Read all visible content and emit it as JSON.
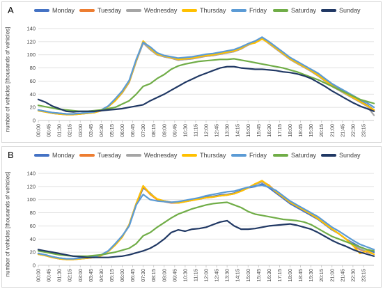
{
  "colors": {
    "Monday": "#4472c4",
    "Tuesday": "#ed7d31",
    "Wednesday": "#a5a5a5",
    "Thursday": "#ffc000",
    "Friday": "#5b9bd5",
    "Saturday": "#70ad47",
    "Sunday": "#203864"
  },
  "chart_data": [
    {
      "type": "line",
      "panel": "A",
      "ylabel": "number of vehicles [thousands of vehicles]",
      "ylim": [
        0,
        140
      ],
      "yticks": [
        "0",
        "20",
        "40",
        "60",
        "80",
        "100",
        "120",
        "140"
      ],
      "xticks": [
        "00:00",
        "00:45",
        "01:30",
        "02:15",
        "03:00",
        "03:45",
        "04:30",
        "05:15",
        "06:00",
        "06:45",
        "07:30",
        "08:15",
        "09:00",
        "09:45",
        "10:30",
        "11:15",
        "12:00",
        "12:45",
        "13:30",
        "14:15",
        "15:00",
        "15:45",
        "16:30",
        "17:15",
        "18:00",
        "18:45",
        "19:30",
        "20:15",
        "21:00",
        "21:45",
        "22:30",
        "23:15"
      ],
      "grid": true,
      "legend": "top",
      "x_hours": [
        0,
        0.5,
        1,
        1.5,
        2,
        2.5,
        3,
        3.5,
        4,
        4.5,
        5,
        5.5,
        6,
        6.5,
        7,
        7.5,
        8,
        8.5,
        9,
        9.5,
        10,
        10.5,
        11,
        11.5,
        12,
        12.5,
        13,
        13.5,
        14,
        14.5,
        15,
        15.5,
        16,
        16.5,
        17,
        17.5,
        18,
        18.5,
        19,
        19.5,
        20,
        20.5,
        21,
        21.5,
        22,
        22.5,
        23,
        23.5,
        24
      ],
      "series": [
        {
          "name": "Monday",
          "values": [
            16,
            14,
            12,
            11,
            10,
            10,
            11,
            12,
            13,
            16,
            22,
            32,
            44,
            60,
            92,
            120,
            110,
            100,
            98,
            96,
            93,
            94,
            95,
            97,
            99,
            100,
            102,
            104,
            106,
            110,
            116,
            120,
            126,
            118,
            110,
            102,
            94,
            88,
            82,
            76,
            70,
            62,
            54,
            48,
            42,
            36,
            30,
            24,
            16
          ]
        },
        {
          "name": "Tuesday",
          "values": [
            15,
            13,
            11,
            10,
            9,
            9,
            10,
            11,
            12,
            15,
            21,
            30,
            42,
            58,
            90,
            118,
            108,
            100,
            97,
            95,
            92,
            93,
            94,
            96,
            98,
            99,
            101,
            103,
            105,
            109,
            115,
            119,
            125,
            117,
            109,
            101,
            93,
            87,
            81,
            75,
            68,
            60,
            52,
            46,
            40,
            34,
            28,
            22,
            15
          ]
        },
        {
          "name": "Wednesday",
          "values": [
            15,
            13,
            11,
            10,
            9,
            9,
            10,
            11,
            12,
            15,
            21,
            30,
            42,
            58,
            90,
            118,
            108,
            100,
            97,
            95,
            92,
            93,
            94,
            96,
            98,
            99,
            101,
            103,
            105,
            109,
            115,
            119,
            126,
            117,
            109,
            101,
            93,
            87,
            81,
            75,
            68,
            60,
            52,
            46,
            40,
            34,
            28,
            22,
            8
          ]
        },
        {
          "name": "Thursday",
          "values": [
            15,
            13,
            11,
            10,
            9,
            9,
            10,
            11,
            12,
            15,
            21,
            30,
            43,
            59,
            91,
            121,
            110,
            101,
            98,
            96,
            93,
            94,
            95,
            97,
            99,
            100,
            102,
            104,
            106,
            110,
            116,
            118,
            124,
            118,
            110,
            102,
            94,
            88,
            82,
            76,
            69,
            61,
            53,
            47,
            41,
            35,
            29,
            23,
            16
          ]
        },
        {
          "name": "Friday",
          "values": [
            16,
            14,
            12,
            11,
            10,
            10,
            11,
            12,
            13,
            16,
            22,
            33,
            45,
            61,
            93,
            119,
            112,
            103,
            99,
            97,
            95,
            96,
            97,
            99,
            101,
            102,
            104,
            106,
            108,
            112,
            117,
            121,
            127,
            120,
            112,
            104,
            96,
            90,
            84,
            78,
            72,
            64,
            56,
            50,
            44,
            38,
            32,
            27,
            20
          ]
        },
        {
          "name": "Saturday",
          "values": [
            23,
            21,
            19,
            17,
            16,
            15,
            14,
            14,
            15,
            16,
            18,
            20,
            25,
            30,
            40,
            52,
            56,
            64,
            70,
            78,
            83,
            86,
            88,
            90,
            91,
            92,
            93,
            93,
            94,
            92,
            90,
            88,
            86,
            84,
            82,
            80,
            77,
            74,
            70,
            66,
            62,
            57,
            52,
            47,
            42,
            37,
            32,
            29,
            26
          ]
        },
        {
          "name": "Sunday",
          "values": [
            32,
            28,
            22,
            18,
            14,
            13,
            14,
            14,
            14,
            15,
            16,
            17,
            18,
            20,
            22,
            24,
            30,
            35,
            40,
            46,
            52,
            58,
            63,
            68,
            72,
            76,
            80,
            82,
            82,
            80,
            79,
            78,
            78,
            77,
            76,
            74,
            73,
            71,
            68,
            64,
            58,
            52,
            45,
            39,
            33,
            27,
            22,
            18,
            14
          ]
        }
      ]
    },
    {
      "type": "line",
      "panel": "B",
      "ylabel": "number of vehicles [thousands of vehicles]",
      "ylim": [
        0,
        140
      ],
      "yticks": [
        "0",
        "20",
        "40",
        "60",
        "80",
        "100",
        "120",
        "140"
      ],
      "xticks": [
        "00:00",
        "00:45",
        "01:30",
        "02:15",
        "03:00",
        "03:45",
        "04:30",
        "05:15",
        "06:00",
        "06:45",
        "07:30",
        "08:15",
        "09:00",
        "09:45",
        "10:30",
        "11:15",
        "12:00",
        "12:45",
        "13:30",
        "14:15",
        "15:00",
        "15:45",
        "16:30",
        "17:15",
        "18:00",
        "18:45",
        "19:30",
        "20:15",
        "21:00",
        "21:45",
        "22:30",
        "23:15"
      ],
      "grid": true,
      "legend": "top",
      "x_hours": [
        0,
        0.5,
        1,
        1.5,
        2,
        2.5,
        3,
        3.5,
        4,
        4.5,
        5,
        5.5,
        6,
        6.5,
        7,
        7.5,
        8,
        8.5,
        9,
        9.5,
        10,
        10.5,
        11,
        11.5,
        12,
        12.5,
        13,
        13.5,
        14,
        14.5,
        15,
        15.5,
        16,
        16.5,
        17,
        17.5,
        18,
        18.5,
        19,
        19.5,
        20,
        20.5,
        21,
        21.5,
        22,
        22.5,
        23,
        23.5,
        24
      ],
      "series": [
        {
          "name": "Monday",
          "values": [
            18,
            16,
            13,
            11,
            10,
            10,
            11,
            12,
            13,
            16,
            22,
            32,
            44,
            60,
            92,
            118,
            110,
            100,
            98,
            96,
            96,
            98,
            100,
            102,
            104,
            105,
            107,
            108,
            110,
            114,
            118,
            120,
            124,
            118,
            110,
            102,
            94,
            88,
            82,
            76,
            70,
            62,
            54,
            48,
            40,
            34,
            28,
            24,
            20
          ]
        },
        {
          "name": "Tuesday",
          "values": [
            17,
            15,
            12,
            10,
            9,
            9,
            10,
            11,
            12,
            15,
            21,
            31,
            43,
            62,
            94,
            120,
            108,
            100,
            97,
            95,
            95,
            97,
            99,
            101,
            103,
            104,
            106,
            107,
            109,
            113,
            118,
            124,
            128,
            122,
            112,
            104,
            96,
            90,
            84,
            78,
            71,
            63,
            55,
            48,
            40,
            30,
            24,
            20,
            17
          ]
        },
        {
          "name": "Wednesday",
          "values": [
            17,
            15,
            12,
            10,
            9,
            9,
            10,
            11,
            12,
            15,
            21,
            31,
            43,
            62,
            94,
            121,
            109,
            101,
            98,
            96,
            95,
            97,
            99,
            101,
            103,
            104,
            106,
            107,
            109,
            113,
            118,
            123,
            127,
            121,
            112,
            104,
            96,
            90,
            84,
            78,
            71,
            63,
            55,
            48,
            40,
            32,
            25,
            21,
            17
          ]
        },
        {
          "name": "Thursday",
          "values": [
            17,
            15,
            12,
            10,
            9,
            9,
            10,
            11,
            12,
            15,
            21,
            31,
            43,
            62,
            94,
            121,
            109,
            101,
            98,
            96,
            95,
            97,
            99,
            101,
            103,
            104,
            106,
            107,
            109,
            113,
            118,
            124,
            129,
            121,
            112,
            104,
            96,
            90,
            84,
            78,
            71,
            63,
            55,
            48,
            40,
            30,
            18,
            22,
            17
          ]
        },
        {
          "name": "Friday",
          "values": [
            18,
            16,
            13,
            11,
            10,
            10,
            11,
            12,
            13,
            16,
            22,
            33,
            45,
            60,
            92,
            108,
            100,
            98,
            97,
            96,
            97,
            99,
            101,
            103,
            106,
            108,
            110,
            112,
            113,
            116,
            119,
            121,
            122,
            119,
            114,
            106,
            98,
            92,
            86,
            80,
            74,
            66,
            58,
            52,
            45,
            38,
            32,
            28,
            24
          ]
        },
        {
          "name": "Saturday",
          "values": [
            22,
            20,
            18,
            16,
            15,
            14,
            14,
            14,
            15,
            16,
            18,
            20,
            23,
            26,
            33,
            45,
            50,
            58,
            65,
            72,
            78,
            82,
            86,
            89,
            92,
            94,
            95,
            96,
            92,
            88,
            82,
            78,
            76,
            74,
            72,
            70,
            69,
            68,
            66,
            62,
            56,
            50,
            44,
            40,
            36,
            32,
            28,
            24,
            22
          ]
        },
        {
          "name": "Sunday",
          "values": [
            24,
            22,
            20,
            18,
            16,
            14,
            13,
            12,
            12,
            12,
            12,
            13,
            14,
            16,
            19,
            22,
            26,
            32,
            40,
            50,
            54,
            52,
            55,
            56,
            58,
            62,
            66,
            68,
            60,
            55,
            55,
            56,
            58,
            60,
            61,
            62,
            63,
            61,
            58,
            55,
            50,
            44,
            38,
            33,
            29,
            24,
            20,
            17,
            14
          ]
        }
      ]
    }
  ]
}
